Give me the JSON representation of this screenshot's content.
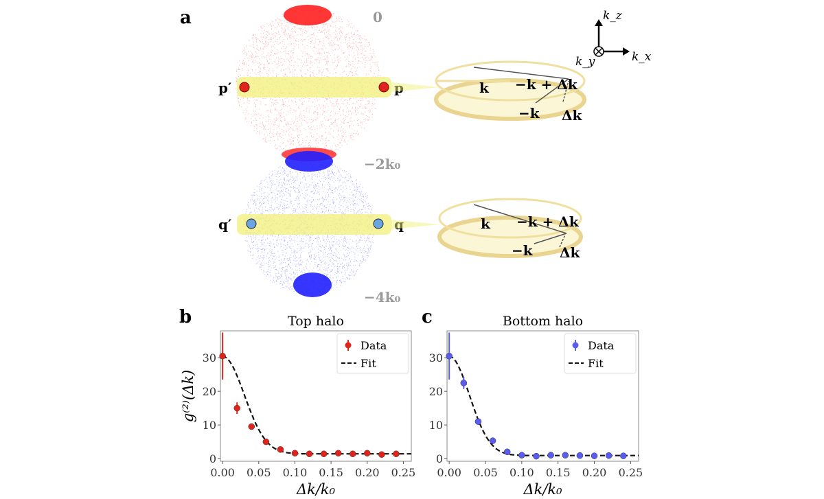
{
  "panel_a": {
    "label": "a",
    "momentum_labels": {
      "top": "0",
      "middle": "−2k₀",
      "bottom": "−4k₀"
    },
    "points_top": {
      "left": "p′",
      "right": "p"
    },
    "points_bottom": {
      "left": "q′",
      "right": "q"
    },
    "ring_labels": {
      "k": "k",
      "sum": "−k + Δk",
      "neg_k": "−k",
      "dk": "Δk"
    },
    "axes": {
      "z": "k_z",
      "y": "k_y",
      "x": "k_x"
    },
    "colors": {
      "top_halo": "#ff2020",
      "bottom_halo": "#2020ff",
      "band": "#f2f07a",
      "ring": "#f3e6a8"
    }
  },
  "chart_data": [
    {
      "panel_label": "b",
      "type": "scatter",
      "title": "Top halo",
      "xlabel": "Δk/k₀",
      "ylabel": "g⁽²⁾(Δk)",
      "xlim": [
        -0.003,
        0.261
      ],
      "ylim": [
        -0.8,
        38
      ],
      "xticks": [
        "0.00",
        "0.05",
        "0.10",
        "0.15",
        "0.20",
        "0.25"
      ],
      "yticks": [
        "0",
        "10",
        "20",
        "30"
      ],
      "legend": {
        "position": "top-right",
        "entries": [
          "Data",
          "Fit"
        ]
      },
      "color": "#e0241b",
      "series": [
        {
          "name": "Data",
          "x": [
            0,
            0.02,
            0.04,
            0.06,
            0.08,
            0.1,
            0.12,
            0.14,
            0.16,
            0.18,
            0.2,
            0.22,
            0.24
          ],
          "y": [
            30.5,
            15,
            9.5,
            5,
            2.7,
            1.6,
            1.4,
            1.4,
            1.6,
            1.4,
            1.6,
            1.2,
            1.4
          ],
          "yerr": [
            7,
            1.7,
            0.7,
            0.5,
            0.4,
            0.3,
            0.3,
            0.3,
            0.3,
            0.3,
            0.3,
            0.3,
            0.3
          ]
        },
        {
          "name": "Fit",
          "style": "dashed",
          "model": "gaussian",
          "amplitude": 29,
          "offset": 1.4,
          "sigma": 0.03
        }
      ]
    },
    {
      "panel_label": "c",
      "type": "scatter",
      "title": "Bottom halo",
      "xlabel": "Δk/k₀",
      "ylabel": "",
      "xlim": [
        -0.003,
        0.261
      ],
      "ylim": [
        -0.8,
        38
      ],
      "xticks": [
        "0.00",
        "0.05",
        "0.10",
        "0.15",
        "0.20",
        "0.25"
      ],
      "yticks": [
        "0",
        "10",
        "20",
        "30"
      ],
      "legend": {
        "position": "top-right",
        "entries": [
          "Data",
          "Fit"
        ]
      },
      "color": "#5a5cf0",
      "series": [
        {
          "name": "Data",
          "x": [
            0,
            0.02,
            0.04,
            0.06,
            0.08,
            0.1,
            0.12,
            0.14,
            0.16,
            0.18,
            0.2,
            0.22,
            0.24
          ],
          "y": [
            30.5,
            22.5,
            11,
            5.3,
            2,
            1,
            0.7,
            1,
            1,
            0.9,
            0.8,
            0.9,
            0.8
          ],
          "yerr": [
            7,
            1.8,
            0.8,
            0.5,
            0.4,
            0.3,
            0.3,
            0.3,
            0.3,
            0.3,
            0.3,
            0.3,
            0.3
          ]
        },
        {
          "name": "Fit",
          "style": "dashed",
          "model": "gaussian",
          "amplitude": 29.5,
          "offset": 0.9,
          "sigma": 0.028
        }
      ]
    }
  ]
}
